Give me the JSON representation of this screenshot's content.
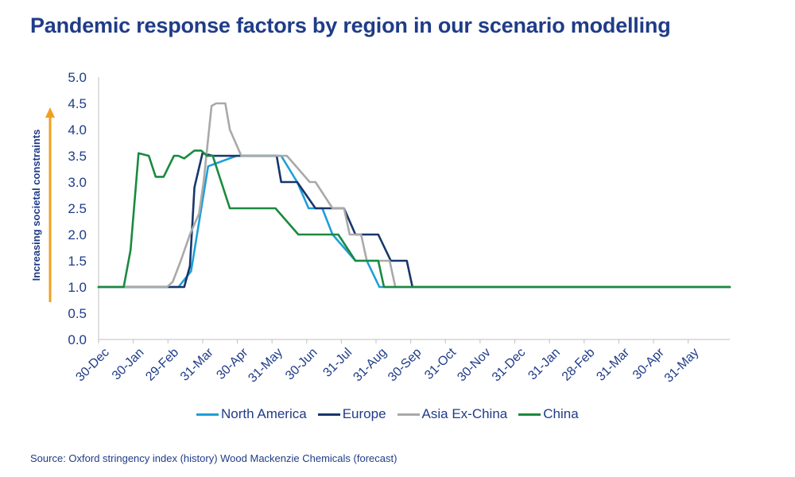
{
  "title": "Pandemic response factors by region in our scenario modelling",
  "source": "Source: Oxford stringency index (history) Wood Mackenzie Chemicals (forecast)",
  "chart_data": {
    "type": "line",
    "title": "Pandemic response factors by region in our scenario modelling",
    "ylabel": "Increasing societal constraints",
    "xlabel": "",
    "ylim": [
      0,
      5
    ],
    "yticks": [
      "0.0",
      "0.5",
      "1.0",
      "1.5",
      "2.0",
      "2.5",
      "3.0",
      "3.5",
      "4.0",
      "4.5",
      "5.0"
    ],
    "xticks": [
      "30-Dec",
      "30-Jan",
      "29-Feb",
      "31-Mar",
      "30-Apr",
      "31-May",
      "30-Jun",
      "31-Jul",
      "31-Aug",
      "30-Sep",
      "31-Oct",
      "30-Nov",
      "31-Dec",
      "31-Jan",
      "28-Feb",
      "31-Mar",
      "30-Apr",
      "31-May"
    ],
    "x_unit": "days since 30-Dec",
    "xlim": [
      0,
      553
    ],
    "grid": false,
    "legend_position": "bottom",
    "series": [
      {
        "name": "North America",
        "color": "#1e9fd8",
        "x": [
          0,
          45,
          60,
          70,
          81,
          96,
          121,
          135,
          145,
          160,
          174,
          184,
          196,
          205,
          225,
          235,
          246,
          263,
          553
        ],
        "y": [
          1,
          1,
          1,
          1,
          1.3,
          3.3,
          3.5,
          3.5,
          3.5,
          3.5,
          3.0,
          2.5,
          2.5,
          2.0,
          1.5,
          1.5,
          1.0,
          1.0,
          1.0
        ]
      },
      {
        "name": "Europe",
        "color": "#17366b",
        "x": [
          0,
          45,
          66,
          75,
          80,
          84,
          91,
          100,
          130,
          144,
          156,
          160,
          174,
          190,
          205,
          215,
          225,
          245,
          256,
          270,
          275,
          290,
          553
        ],
        "y": [
          1,
          1,
          1,
          1,
          1.4,
          2.9,
          3.55,
          3.5,
          3.5,
          3.5,
          3.5,
          3.0,
          3.0,
          2.5,
          2.5,
          2.5,
          2.0,
          2.0,
          1.5,
          1.5,
          1.0,
          1.0,
          1.0
        ]
      },
      {
        "name": "Asia Ex-China",
        "color": "#a9a9a9",
        "x": [
          0,
          45,
          50,
          60,
          65,
          72,
          80,
          88,
          92,
          99,
          103,
          111,
          115,
          125,
          135,
          155,
          165,
          185,
          190,
          205,
          215,
          220,
          230,
          235,
          245,
          255,
          260,
          553
        ],
        "y": [
          1,
          1,
          1,
          1,
          1.1,
          1.5,
          2.0,
          2.4,
          3.0,
          4.45,
          4.5,
          4.5,
          4.0,
          3.5,
          3.5,
          3.5,
          3.5,
          3.0,
          3.0,
          2.5,
          2.5,
          2.0,
          2.0,
          1.5,
          1.5,
          1.5,
          1.0,
          1.0
        ]
      },
      {
        "name": "China",
        "color": "#1a8a3e",
        "x": [
          0,
          15,
          22,
          28,
          35,
          44,
          50,
          57,
          66,
          70,
          75,
          84,
          90,
          95,
          100,
          115,
          120,
          133,
          155,
          175,
          210,
          225,
          230,
          240,
          245,
          250,
          260,
          553
        ],
        "y": [
          1,
          1,
          1.0,
          1.7,
          3.55,
          3.5,
          3.1,
          3.1,
          3.5,
          3.5,
          3.45,
          3.6,
          3.6,
          3.5,
          3.5,
          2.5,
          2.5,
          2.5,
          2.5,
          2.0,
          2.0,
          1.5,
          1.5,
          1.5,
          1.5,
          1.0,
          1.0,
          1.0
        ]
      }
    ]
  }
}
